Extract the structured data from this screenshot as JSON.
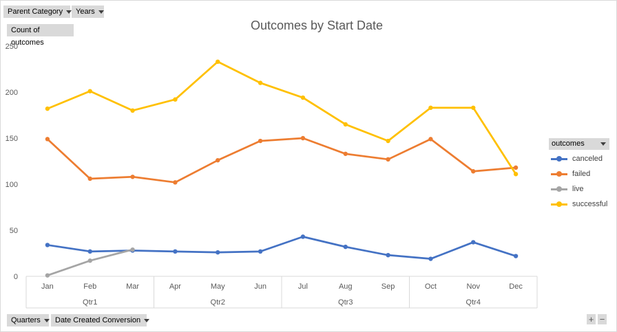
{
  "filters_top": [
    {
      "label": "Parent Category"
    },
    {
      "label": "Years"
    }
  ],
  "value_field": {
    "label": "Count of outcomes"
  },
  "filters_bottom": [
    {
      "label": "Quarters"
    },
    {
      "label": "Date Created Conversion"
    }
  ],
  "legend_field": {
    "label": "outcomes"
  },
  "zoom": {
    "plus": "+",
    "minus": "−"
  },
  "chart_data": {
    "type": "line",
    "title": "Outcomes by Start Date",
    "xlabel": "",
    "ylabel": "",
    "ylim": [
      0,
      250
    ],
    "yticks": [
      0,
      50,
      100,
      150,
      200,
      250
    ],
    "grid": false,
    "legend_position": "right",
    "categories": [
      "Jan",
      "Feb",
      "Mar",
      "Apr",
      "May",
      "Jun",
      "Jul",
      "Aug",
      "Sep",
      "Oct",
      "Nov",
      "Dec"
    ],
    "groups": [
      {
        "label": "Qtr1",
        "count": 3
      },
      {
        "label": "Qtr2",
        "count": 3
      },
      {
        "label": "Qtr3",
        "count": 3
      },
      {
        "label": "Qtr4",
        "count": 3
      }
    ],
    "series": [
      {
        "name": "canceled",
        "color": "#4472c4",
        "values": [
          34,
          27,
          28,
          27,
          26,
          27,
          43,
          32,
          23,
          19,
          37,
          22
        ]
      },
      {
        "name": "failed",
        "color": "#ed7d31",
        "values": [
          149,
          106,
          108,
          102,
          126,
          147,
          150,
          133,
          127,
          149,
          114,
          118
        ]
      },
      {
        "name": "live",
        "color": "#a5a5a5",
        "values": [
          1,
          17,
          29,
          null,
          null,
          null,
          null,
          null,
          null,
          null,
          null,
          null
        ]
      },
      {
        "name": "successful",
        "color": "#ffc000",
        "values": [
          182,
          201,
          180,
          192,
          233,
          210,
          194,
          165,
          147,
          183,
          183,
          111
        ]
      }
    ]
  }
}
